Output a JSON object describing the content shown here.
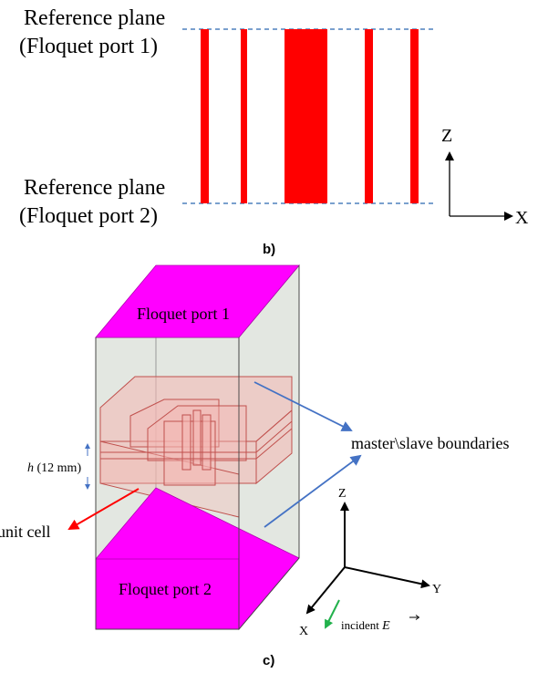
{
  "panel_b": {
    "caption": "b)",
    "ref_plane_1_line1": "Reference plane",
    "ref_plane_1_line2": "(Floquet port 1)",
    "ref_plane_2_line1": "Reference plane",
    "ref_plane_2_line2": "(Floquet port 2)",
    "axis_z": "Z",
    "axis_x": "X",
    "colors": {
      "strip": "#ff0000",
      "dashed_line": "#4f81bd"
    }
  },
  "panel_c": {
    "caption": "c)",
    "top_port_label": "Floquet port 1",
    "bottom_port_label": "Floquet port 2",
    "boundaries_label": "master\\slave boundaries",
    "height_label_var": "h",
    "height_label_value": " (12 mm)",
    "unit_cell_label": "unit cell",
    "axis_z": "Z",
    "axis_y": "Y",
    "axis_x": "X",
    "incident_label": "incident ",
    "incident_symbol": "E",
    "colors": {
      "port": "#ff00ff",
      "box_fill": "#e3e7e1",
      "arrow_blue": "#4472c4",
      "arrow_red": "#ff0000",
      "arrow_green": "#22b14c",
      "cell_fill": "#f4b6b3",
      "cell_stroke": "#c0504d"
    }
  }
}
